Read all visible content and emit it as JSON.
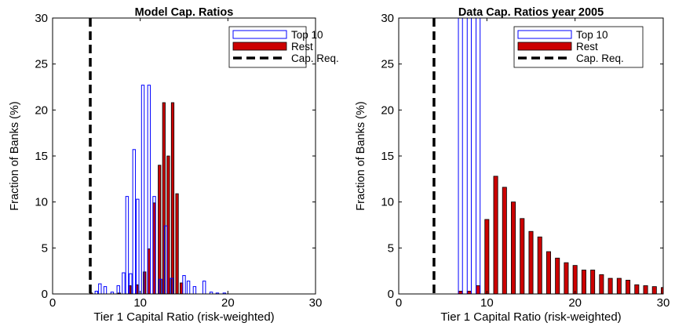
{
  "chart_data": [
    {
      "type": "bar",
      "title": "Model Cap. Ratios",
      "xlabel": "Tier 1 Capital Ratio (risk-weighted)",
      "ylabel": "Fraction of Banks (%)",
      "xlim": [
        0,
        30
      ],
      "ylim": [
        0,
        30
      ],
      "xticks": [
        "0",
        "10",
        "20",
        "30"
      ],
      "yticks": [
        "0",
        "5",
        "10",
        "15",
        "20",
        "25",
        "30"
      ],
      "legend_position": "top-right",
      "cap_req": {
        "name": "Cap. Req.",
        "x": 4.3,
        "style": "dashed",
        "color": "#000000"
      },
      "series": [
        {
          "name": "Top 10",
          "style": "outline",
          "color": "#0000ff",
          "x": [
            5,
            5.4,
            6,
            6.8,
            7.5,
            8.1,
            8.5,
            8.9,
            9.3,
            9.7,
            10.3,
            11,
            11.6,
            12.3,
            12.9,
            13.6,
            15,
            15.5,
            16.2,
            17.3,
            18.1,
            18.8,
            19.6
          ],
          "values": [
            0.3,
            1.1,
            0.8,
            0.2,
            0.9,
            2.3,
            10.6,
            2.2,
            15.7,
            10.3,
            22.7,
            22.7,
            10.6,
            1.6,
            7.4,
            1.7,
            2.0,
            1.4,
            0.8,
            1.4,
            0.2,
            0.1,
            0.1
          ]
        },
        {
          "name": "Rest",
          "style": "filled",
          "color": "#cc0000",
          "x": [
            4.4,
            7.6,
            8.8,
            9.6,
            10.5,
            11,
            11.6,
            12.2,
            12.7,
            13.2,
            13.7,
            14.2,
            14.7
          ],
          "values": [
            0.1,
            0.1,
            0.9,
            1.0,
            2.4,
            4.9,
            9.9,
            14.0,
            20.8,
            15.0,
            20.8,
            10.9,
            1.2
          ]
        }
      ]
    },
    {
      "type": "bar",
      "title": "Data Cap. Ratios year 2005",
      "xlabel": "Tier 1 Capital Ratio (risk-weighted)",
      "ylabel": "Fraction of Banks (%)",
      "xlim": [
        0,
        30
      ],
      "ylim": [
        0,
        30
      ],
      "xticks": [
        "0",
        "10",
        "20",
        "30"
      ],
      "yticks": [
        "0",
        "5",
        "10",
        "15",
        "20",
        "25",
        "30"
      ],
      "legend_position": "top-right",
      "cap_req": {
        "name": "Cap. Req.",
        "x": 4,
        "style": "dashed",
        "color": "#000000"
      },
      "series": [
        {
          "name": "Top 10",
          "style": "outline",
          "color": "#0000ff",
          "x": [
            7,
            8,
            9
          ],
          "values": [
            30,
            30,
            30
          ]
        },
        {
          "name": "Rest",
          "style": "filled",
          "color": "#cc0000",
          "x": [
            7,
            8,
            9,
            10,
            11,
            12,
            13,
            14,
            15,
            16,
            17,
            18,
            19,
            20,
            21,
            22,
            23,
            24,
            25,
            26,
            27,
            28,
            29,
            30
          ],
          "values": [
            0.3,
            0.3,
            0.9,
            8.1,
            12.8,
            11.6,
            10.0,
            8.2,
            6.8,
            6.2,
            4.6,
            3.9,
            3.4,
            3.1,
            2.6,
            2.6,
            2.1,
            1.7,
            1.7,
            1.5,
            1.0,
            0.9,
            0.8,
            0.7
          ]
        }
      ]
    }
  ]
}
